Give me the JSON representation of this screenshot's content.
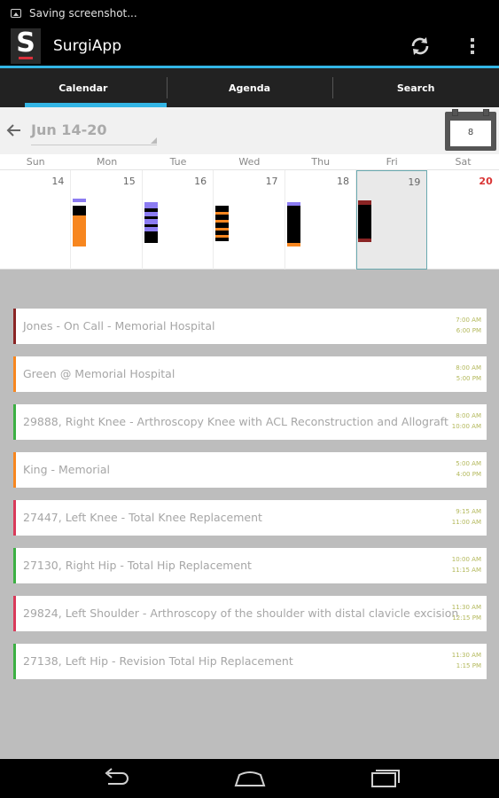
{
  "status_bar": {
    "notification": "Saving screenshot..."
  },
  "app": {
    "logo_letter": "S",
    "title": "SurgiApp"
  },
  "tabs": [
    {
      "label": "Calendar",
      "active": true
    },
    {
      "label": "Agenda",
      "active": false
    },
    {
      "label": "Search",
      "active": false
    }
  ],
  "toolbar": {
    "week_range": "Jun 14-20",
    "today_day": "8"
  },
  "week": {
    "days": [
      {
        "dow": "Sun",
        "num": "14"
      },
      {
        "dow": "Mon",
        "num": "15"
      },
      {
        "dow": "Tue",
        "num": "16"
      },
      {
        "dow": "Wed",
        "num": "17"
      },
      {
        "dow": "Thu",
        "num": "18"
      },
      {
        "dow": "Fri",
        "num": "19",
        "selected": true
      },
      {
        "dow": "Sat",
        "num": "20",
        "weekend": true
      }
    ]
  },
  "colors": {
    "accent": "#33b5e5",
    "orange": "#f7861f",
    "purple": "#8c7cf2",
    "green": "#3cb043",
    "red": "#d93a5a",
    "dark_red": "#8a2424",
    "time_text": "#b3b85a"
  },
  "events": [
    {
      "title": "Jones - On Call - Memorial Hospital",
      "start": "7:00 AM",
      "end": "6:00 PM",
      "color": "#8a2424"
    },
    {
      "title": "Green @ Memorial Hospital",
      "start": "8:00 AM",
      "end": "5:00 PM",
      "color": "#f7861f"
    },
    {
      "title": "29888, Right Knee - Arthroscopy Knee with ACL Reconstruction and Allograft",
      "start": "8:00 AM",
      "end": "10:00 AM",
      "color": "#3cb043"
    },
    {
      "title": "King - Memorial",
      "start": "5:00 AM",
      "end": "4:00 PM",
      "color": "#f7861f"
    },
    {
      "title": "27447, Left Knee - Total Knee Replacement",
      "start": "9:15 AM",
      "end": "11:00 AM",
      "color": "#d93a5a"
    },
    {
      "title": "27130, Right Hip - Total Hip Replacement",
      "start": "10:00 AM",
      "end": "11:15 AM",
      "color": "#3cb043"
    },
    {
      "title": "29824, Left Shoulder - Arthroscopy of the shoulder with distal clavicle excision",
      "start": "11:30 AM",
      "end": "12:15 PM",
      "color": "#d93a5a"
    },
    {
      "title": "27138, Left Hip - Revision Total Hip Replacement",
      "start": "11:30 AM",
      "end": "1:15 PM",
      "color": "#3cb043"
    }
  ]
}
